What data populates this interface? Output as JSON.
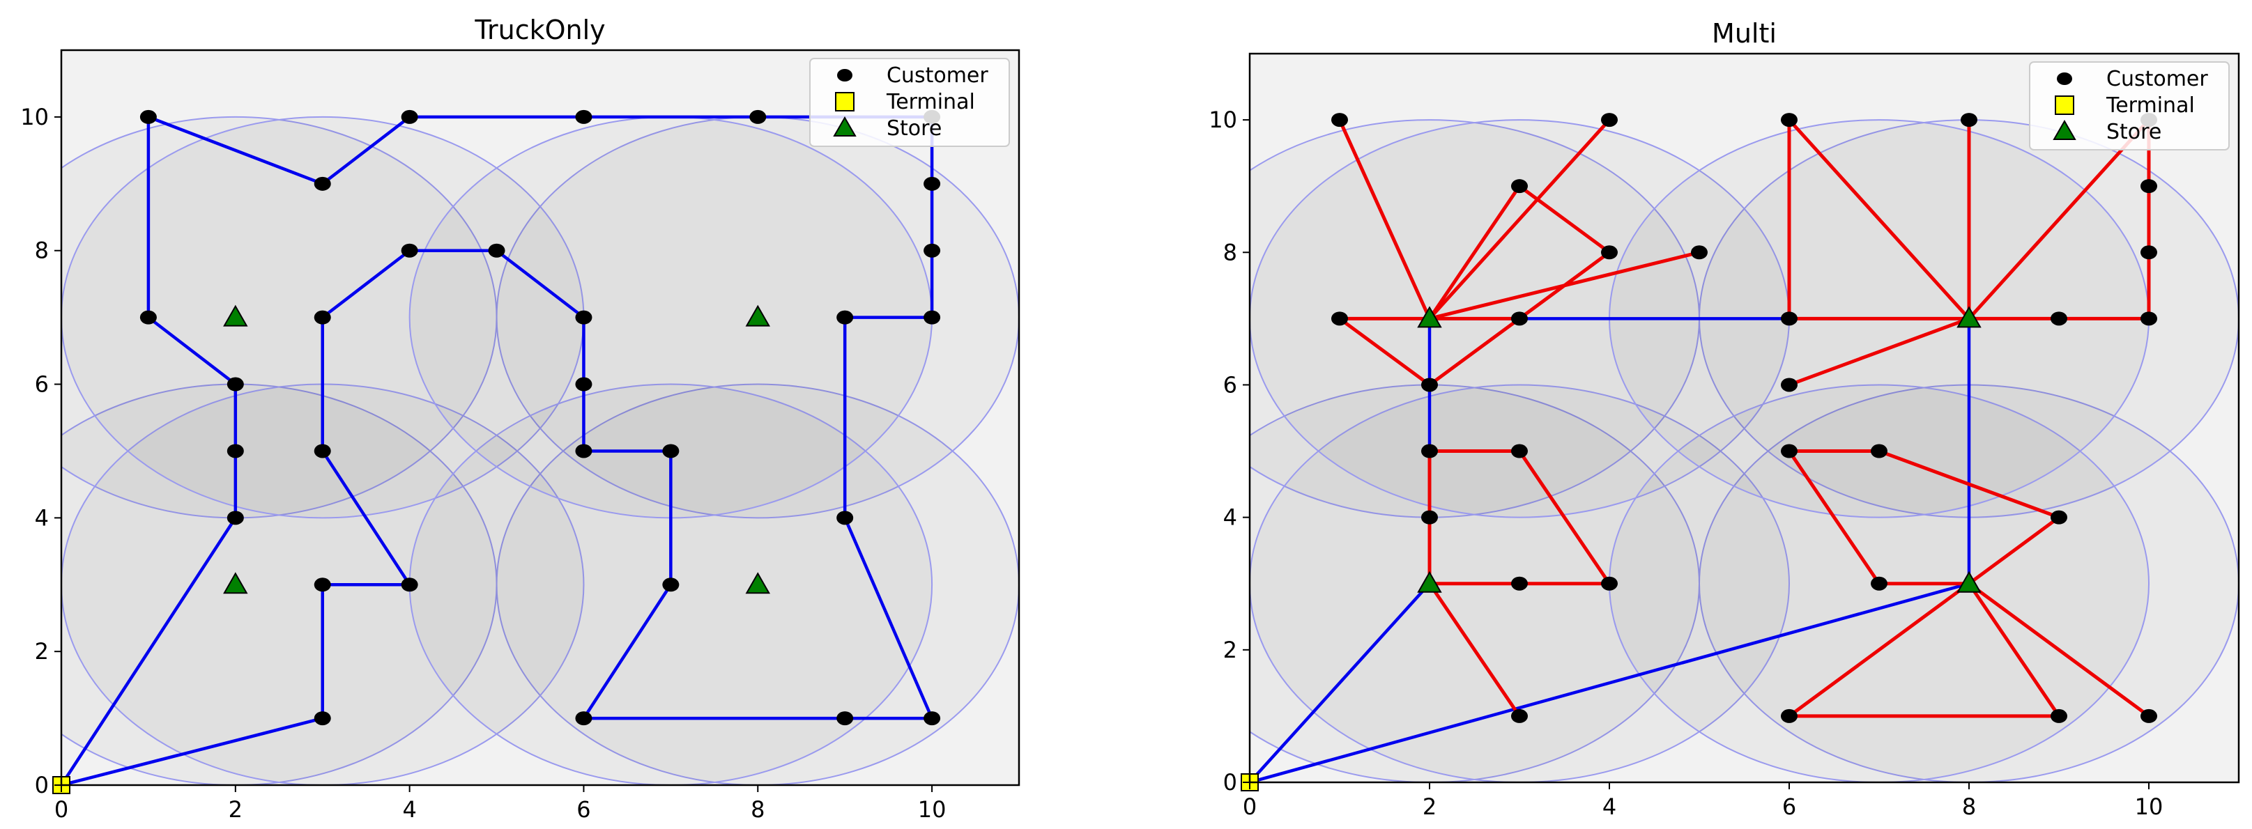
{
  "chart_data": [
    {
      "type": "scatter",
      "title": "TruckOnly",
      "xlabel": "",
      "ylabel": "",
      "xlim": [
        0,
        11
      ],
      "ylim": [
        0,
        11
      ],
      "xticks": [
        0,
        2,
        4,
        6,
        8,
        10
      ],
      "yticks": [
        0,
        2,
        4,
        6,
        8,
        10
      ],
      "grid": false,
      "legend": {
        "placement": "top-right",
        "entries": [
          {
            "label": "Customer",
            "marker": "circle",
            "color": "#000000"
          },
          {
            "label": "Terminal",
            "marker": "square",
            "color": "#ffff00"
          },
          {
            "label": "Store",
            "marker": "triangle",
            "color": "#008000"
          }
        ]
      },
      "coverage_circles": {
        "radius": 3,
        "centers": [
          [
            2,
            3
          ],
          [
            2,
            7
          ],
          [
            8,
            3
          ],
          [
            8,
            7
          ],
          [
            3,
            3
          ],
          [
            3,
            7
          ],
          [
            7,
            3
          ],
          [
            7,
            7
          ]
        ]
      },
      "customers": [
        [
          1,
          10
        ],
        [
          3,
          9
        ],
        [
          4,
          10
        ],
        [
          6,
          10
        ],
        [
          8,
          10
        ],
        [
          10,
          10
        ],
        [
          10,
          9
        ],
        [
          10,
          8
        ],
        [
          10,
          7
        ],
        [
          9,
          7
        ],
        [
          1,
          7
        ],
        [
          2,
          6
        ],
        [
          2,
          5
        ],
        [
          2,
          4
        ],
        [
          3,
          7
        ],
        [
          3,
          5
        ],
        [
          4,
          8
        ],
        [
          5,
          8
        ],
        [
          6,
          7
        ],
        [
          6,
          6
        ],
        [
          6,
          5
        ],
        [
          7,
          5
        ],
        [
          7,
          3
        ],
        [
          4,
          3
        ],
        [
          3,
          3
        ],
        [
          3,
          1
        ],
        [
          6,
          1
        ],
        [
          9,
          1
        ],
        [
          10,
          1
        ],
        [
          9,
          4
        ]
      ],
      "terminal": [
        [
          0,
          0
        ]
      ],
      "stores": [
        [
          2,
          7
        ],
        [
          2,
          3
        ],
        [
          8,
          7
        ],
        [
          8,
          3
        ]
      ],
      "truck_routes": [
        [
          [
            0,
            0
          ],
          [
            2,
            4
          ],
          [
            2,
            5
          ],
          [
            2,
            6
          ],
          [
            1,
            7
          ],
          [
            1,
            10
          ],
          [
            3,
            9
          ],
          [
            4,
            10
          ],
          [
            6,
            10
          ],
          [
            8,
            10
          ],
          [
            10,
            10
          ],
          [
            10,
            9
          ],
          [
            10,
            8
          ],
          [
            10,
            7
          ],
          [
            9,
            7
          ],
          [
            9,
            4
          ],
          [
            10,
            1
          ],
          [
            9,
            1
          ],
          [
            6,
            1
          ],
          [
            7,
            3
          ],
          [
            7,
            5
          ],
          [
            6,
            5
          ],
          [
            6,
            6
          ],
          [
            6,
            7
          ],
          [
            5,
            8
          ],
          [
            4,
            8
          ],
          [
            3,
            7
          ],
          [
            3,
            5
          ],
          [
            4,
            3
          ],
          [
            3,
            3
          ],
          [
            3,
            1
          ],
          [
            0,
            0
          ]
        ]
      ],
      "drone_routes": []
    },
    {
      "type": "scatter",
      "title": "Multi",
      "xlabel": "",
      "ylabel": "",
      "xlim": [
        0,
        11
      ],
      "ylim": [
        0,
        11
      ],
      "xticks": [
        0,
        2,
        4,
        6,
        8,
        10
      ],
      "yticks": [
        0,
        2,
        4,
        6,
        8,
        10
      ],
      "grid": false,
      "legend": {
        "placement": "top-right",
        "entries": [
          {
            "label": "Customer",
            "marker": "circle",
            "color": "#000000"
          },
          {
            "label": "Terminal",
            "marker": "square",
            "color": "#ffff00"
          },
          {
            "label": "Store",
            "marker": "triangle",
            "color": "#008000"
          }
        ]
      },
      "coverage_circles": {
        "radius": 3,
        "centers": [
          [
            2,
            3
          ],
          [
            2,
            7
          ],
          [
            8,
            3
          ],
          [
            8,
            7
          ],
          [
            3,
            3
          ],
          [
            3,
            7
          ],
          [
            7,
            3
          ],
          [
            7,
            7
          ]
        ]
      },
      "customers": [
        [
          1,
          10
        ],
        [
          4,
          10
        ],
        [
          3,
          9
        ],
        [
          4,
          8
        ],
        [
          5,
          8
        ],
        [
          1,
          7
        ],
        [
          3,
          7
        ],
        [
          2,
          6
        ],
        [
          2,
          5
        ],
        [
          3,
          5
        ],
        [
          2,
          4
        ],
        [
          3,
          3
        ],
        [
          4,
          3
        ],
        [
          3,
          1
        ],
        [
          6,
          10
        ],
        [
          8,
          10
        ],
        [
          10,
          10
        ],
        [
          10,
          9
        ],
        [
          10,
          8
        ],
        [
          10,
          7
        ],
        [
          9,
          7
        ],
        [
          6,
          7
        ],
        [
          6,
          6
        ],
        [
          6,
          5
        ],
        [
          7,
          5
        ],
        [
          9,
          4
        ],
        [
          7,
          3
        ],
        [
          6,
          1
        ],
        [
          9,
          1
        ],
        [
          10,
          1
        ]
      ],
      "terminal": [
        [
          0,
          0
        ]
      ],
      "stores": [
        [
          2,
          7
        ],
        [
          2,
          3
        ],
        [
          8,
          7
        ],
        [
          8,
          3
        ]
      ],
      "truck_routes": [
        [
          [
            0,
            0
          ],
          [
            2,
            3
          ],
          [
            2,
            7
          ],
          [
            8,
            7
          ],
          [
            8,
            3
          ],
          [
            0,
            0
          ]
        ]
      ],
      "drone_routes": [
        [
          [
            1,
            10
          ],
          [
            2,
            7
          ]
        ],
        [
          [
            4,
            10
          ],
          [
            2,
            7
          ]
        ],
        [
          [
            3,
            9
          ],
          [
            2,
            7
          ]
        ],
        [
          [
            3,
            9
          ],
          [
            4,
            8
          ]
        ],
        [
          [
            4,
            8
          ],
          [
            2,
            6
          ]
        ],
        [
          [
            5,
            8
          ],
          [
            2,
            7
          ]
        ],
        [
          [
            1,
            7
          ],
          [
            2,
            7
          ]
        ],
        [
          [
            1,
            7
          ],
          [
            2,
            6
          ]
        ],
        [
          [
            2,
            7
          ],
          [
            3,
            7
          ]
        ],
        [
          [
            2,
            3
          ],
          [
            2,
            4
          ]
        ],
        [
          [
            2,
            4
          ],
          [
            2,
            5
          ]
        ],
        [
          [
            2,
            5
          ],
          [
            3,
            5
          ]
        ],
        [
          [
            3,
            5
          ],
          [
            4,
            3
          ]
        ],
        [
          [
            2,
            3
          ],
          [
            3,
            3
          ]
        ],
        [
          [
            3,
            3
          ],
          [
            4,
            3
          ]
        ],
        [
          [
            2,
            3
          ],
          [
            3,
            1
          ]
        ],
        [
          [
            6,
            10
          ],
          [
            6,
            7
          ]
        ],
        [
          [
            6,
            10
          ],
          [
            8,
            7
          ]
        ],
        [
          [
            8,
            10
          ],
          [
            8,
            7
          ]
        ],
        [
          [
            10,
            10
          ],
          [
            8,
            7
          ]
        ],
        [
          [
            10,
            10
          ],
          [
            10,
            9
          ]
        ],
        [
          [
            10,
            9
          ],
          [
            10,
            8
          ]
        ],
        [
          [
            10,
            8
          ],
          [
            10,
            7
          ]
        ],
        [
          [
            6,
            7
          ],
          [
            8,
            7
          ]
        ],
        [
          [
            8,
            7
          ],
          [
            9,
            7
          ]
        ],
        [
          [
            9,
            7
          ],
          [
            10,
            7
          ]
        ],
        [
          [
            6,
            6
          ],
          [
            8,
            7
          ]
        ],
        [
          [
            6,
            5
          ],
          [
            7,
            5
          ]
        ],
        [
          [
            7,
            5
          ],
          [
            9,
            4
          ]
        ],
        [
          [
            9,
            4
          ],
          [
            8,
            3
          ]
        ],
        [
          [
            6,
            5
          ],
          [
            7,
            3
          ]
        ],
        [
          [
            7,
            3
          ],
          [
            8,
            3
          ]
        ],
        [
          [
            6,
            1
          ],
          [
            8,
            3
          ]
        ],
        [
          [
            6,
            1
          ],
          [
            9,
            1
          ]
        ],
        [
          [
            9,
            1
          ],
          [
            8,
            3
          ]
        ],
        [
          [
            8,
            3
          ],
          [
            10,
            1
          ]
        ]
      ]
    }
  ],
  "colors": {
    "truck": "#0000ee",
    "drone": "#ee0000",
    "customer": "#000000",
    "terminal": "#ffff00",
    "store": "#008000",
    "axes_bg": "#f2f2f2",
    "circle_fill": "#000000",
    "circle_edge": "#9a9aee"
  }
}
